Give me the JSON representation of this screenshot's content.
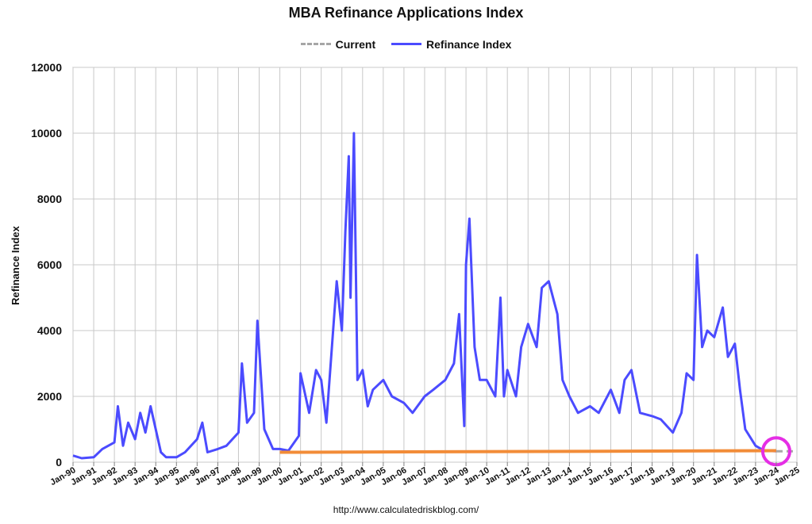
{
  "chart_data": {
    "type": "line",
    "title": "MBA Refinance Applications Index",
    "xlabel": "",
    "ylabel": "Refinance Index",
    "ylim": [
      0,
      12000
    ],
    "yticks": [
      0,
      2000,
      4000,
      6000,
      8000,
      10000,
      12000
    ],
    "xlim": [
      "1990-01",
      "2025-01"
    ],
    "xtick_labels": [
      "Jan-90",
      "Jan-91",
      "Jan-92",
      "Jan-93",
      "Jan-94",
      "Jan-95",
      "Jan-96",
      "Jan-97",
      "Jan-98",
      "Jan-99",
      "Jan-00",
      "Jan-01",
      "Jan-02",
      "Jan-03",
      "Jan-04",
      "Jan-05",
      "Jan-06",
      "Jan-07",
      "Jan-08",
      "Jan-09",
      "Jan-10",
      "Jan-11",
      "Jan-12",
      "Jan-13",
      "Jan-14",
      "Jan-15",
      "Jan-16",
      "Jan-17",
      "Jan-18",
      "Jan-19",
      "Jan-20",
      "Jan-21",
      "Jan-22",
      "Jan-23",
      "Jan-24",
      "Jan-25"
    ],
    "grid": true,
    "legend": "top",
    "series": [
      {
        "name": "Current",
        "style": "dashed",
        "color": "#a6a6a6",
        "x": [
          "2024-01",
          "2025-01"
        ],
        "y": [
          330,
          330
        ]
      },
      {
        "name": "Refinance Index",
        "style": "solid",
        "color": "#4b4bff",
        "x": [
          "1990-01",
          "1990-06",
          "1991-01",
          "1991-06",
          "1992-01",
          "1992-03",
          "1992-06",
          "1992-09",
          "1993-01",
          "1993-04",
          "1993-07",
          "1993-10",
          "1994-01",
          "1994-04",
          "1994-07",
          "1995-01",
          "1995-06",
          "1996-01",
          "1996-04",
          "1996-07",
          "1997-01",
          "1997-06",
          "1998-01",
          "1998-03",
          "1998-06",
          "1998-10",
          "1998-12",
          "1999-04",
          "1999-09",
          "2000-01",
          "2000-06",
          "2000-12",
          "2001-01",
          "2001-06",
          "2001-10",
          "2002-01",
          "2002-04",
          "2002-10",
          "2003-01",
          "2003-03",
          "2003-05",
          "2003-06",
          "2003-08",
          "2003-10",
          "2004-01",
          "2004-04",
          "2004-07",
          "2005-01",
          "2005-06",
          "2006-01",
          "2006-06",
          "2007-01",
          "2007-06",
          "2008-01",
          "2008-06",
          "2008-09",
          "2008-12",
          "2009-01",
          "2009-03",
          "2009-06",
          "2009-09",
          "2010-01",
          "2010-06",
          "2010-09",
          "2010-11",
          "2011-01",
          "2011-06",
          "2011-09",
          "2012-01",
          "2012-06",
          "2012-09",
          "2013-01",
          "2013-06",
          "2013-09",
          "2014-01",
          "2014-06",
          "2015-01",
          "2015-06",
          "2016-01",
          "2016-06",
          "2016-09",
          "2017-01",
          "2017-06",
          "2018-01",
          "2018-06",
          "2019-01",
          "2019-06",
          "2019-09",
          "2020-01",
          "2020-03",
          "2020-06",
          "2020-09",
          "2021-01",
          "2021-06",
          "2021-09",
          "2022-01",
          "2022-04",
          "2022-07",
          "2023-01",
          "2023-06",
          "2024-01"
        ],
        "y": [
          200,
          120,
          150,
          400,
          600,
          1700,
          500,
          1200,
          700,
          1500,
          900,
          1700,
          1000,
          300,
          150,
          150,
          300,
          700,
          1200,
          300,
          400,
          500,
          900,
          3000,
          1200,
          1500,
          4300,
          1000,
          400,
          400,
          350,
          800,
          2700,
          1500,
          2800,
          2500,
          1200,
          5500,
          4000,
          7000,
          9300,
          5000,
          10000,
          2500,
          2800,
          1700,
          2200,
          2500,
          2000,
          1800,
          1500,
          2000,
          2200,
          2500,
          3000,
          4500,
          1100,
          6000,
          7400,
          3500,
          2500,
          2500,
          2000,
          5000,
          2000,
          2800,
          2000,
          3500,
          4200,
          3500,
          5300,
          5500,
          4500,
          2500,
          2000,
          1500,
          1700,
          1500,
          2200,
          1500,
          2500,
          2800,
          1500,
          1400,
          1300,
          900,
          1500,
          2700,
          2500,
          6300,
          3500,
          4000,
          3800,
          4700,
          3200,
          3600,
          2200,
          1000,
          500,
          350,
          330
        ]
      }
    ],
    "annotations": {
      "trend_line": {
        "color": "#f28c38",
        "x": [
          "2000-01",
          "2024-01"
        ],
        "y": [
          300,
          350
        ]
      },
      "highlight_circle": {
        "color": "#e52ee5",
        "x": "2024-01",
        "y": 330
      }
    },
    "source": "http://www.calculatedriskblog.com/"
  }
}
